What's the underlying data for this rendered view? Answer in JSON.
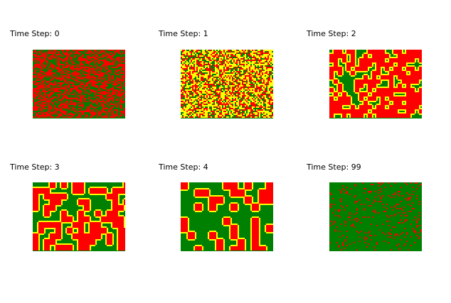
{
  "panels": [
    {
      "title": "Time Step: 0"
    },
    {
      "title": "Time Step: 1"
    },
    {
      "title": "Time Step: 2"
    },
    {
      "title": "Time Step: 3"
    },
    {
      "title": "Time Step: 4"
    },
    {
      "title": "Time Step: 99"
    }
  ]
}
